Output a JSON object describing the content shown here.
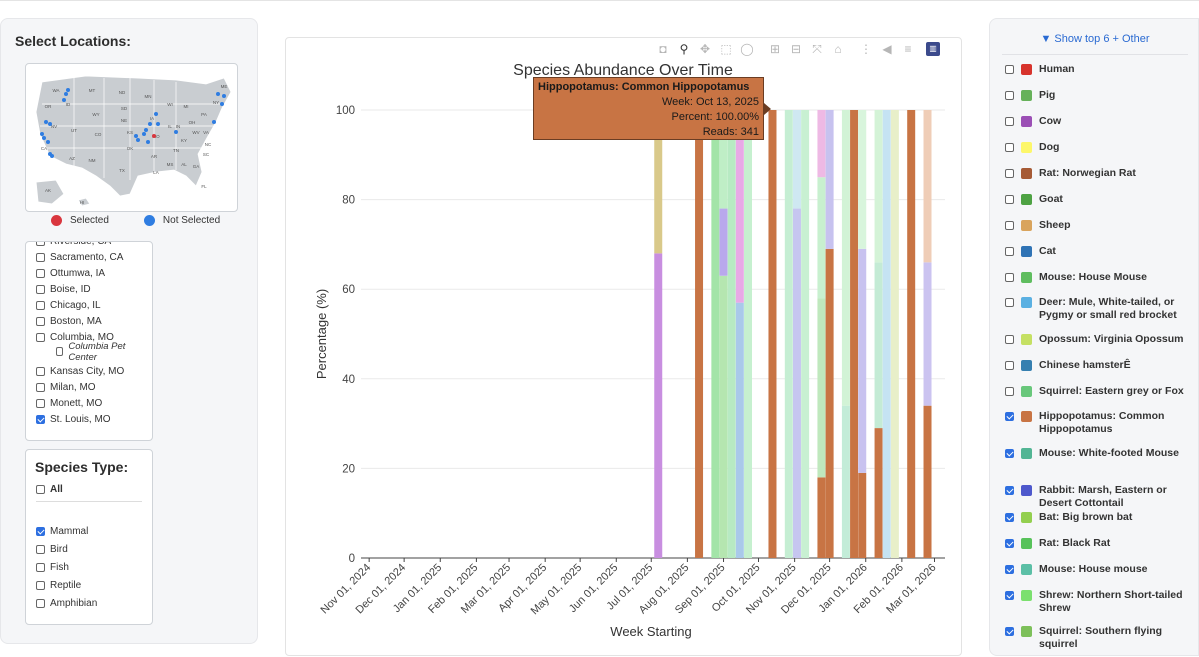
{
  "sidebar": {
    "title": "Select Locations:",
    "map_legend": {
      "selected_label": "Selected",
      "selected_color": "#d9363e",
      "not_selected_label": "Not Selected",
      "not_selected_color": "#2f7de1"
    },
    "map_state_labels": [
      "WA",
      "OR",
      "ID",
      "MT",
      "WY",
      "NV",
      "CA",
      "UT",
      "CO",
      "AZ",
      "NM",
      "ND",
      "SD",
      "NE",
      "KS",
      "OK",
      "TX",
      "MN",
      "IA",
      "MO",
      "AR",
      "LA",
      "WI",
      "IL",
      "MS",
      "AL",
      "GA",
      "FL",
      "MI",
      "IN",
      "OH",
      "KY",
      "TN",
      "SC",
      "NC",
      "VA",
      "WV",
      "PA",
      "NY",
      "ME",
      "AK",
      "HI"
    ],
    "locations": [
      {
        "label": "Riverside, CA",
        "checked": false
      },
      {
        "label": "Sacramento, CA",
        "checked": false
      },
      {
        "label": "Ottumwa, IA",
        "checked": false
      },
      {
        "label": "Boise, ID",
        "checked": false
      },
      {
        "label": "Chicago, IL",
        "checked": false
      },
      {
        "label": "Boston, MA",
        "checked": false
      },
      {
        "label": "Columbia, MO",
        "checked": false
      },
      {
        "label": "Columbia Pet Center",
        "checked": false
      },
      {
        "label": "Kansas City, MO",
        "checked": false
      },
      {
        "label": "Milan, MO",
        "checked": false
      },
      {
        "label": "Monett, MO",
        "checked": false
      },
      {
        "label": "St. Louis, MO",
        "checked": true
      }
    ],
    "species_type": {
      "title": "Species Type:",
      "all_label": "All",
      "all_checked": false,
      "options": [
        {
          "label": "Mammal",
          "checked": true
        },
        {
          "label": "Bird",
          "checked": false
        },
        {
          "label": "Fish",
          "checked": false
        },
        {
          "label": "Reptile",
          "checked": false
        },
        {
          "label": "Amphibian",
          "checked": false
        }
      ]
    }
  },
  "toolbar": {
    "icons": [
      "camera-icon",
      "zoom-icon",
      "pan-icon",
      "box-select-icon",
      "lasso-icon",
      "zoom-in-icon",
      "zoom-out-icon",
      "autoscale-icon",
      "reset-axes-icon",
      "spike-lines-icon",
      "hover-closest-icon",
      "hover-compare-icon",
      "plotly-logo-icon"
    ]
  },
  "tooltip": {
    "title": "Hippopotamus: Common Hippopotamus",
    "week": "Week: Oct 13, 2025",
    "percent": "Percent: 100.00%",
    "reads": "Reads: 341",
    "color": "#c87444"
  },
  "chart_data": {
    "type": "bar",
    "stacked": true,
    "title": "Species Abundance Over Time",
    "xlabel": "Week Starting",
    "ylabel": "Percentage (%)",
    "ylim": [
      0,
      100
    ],
    "yticks": [
      0,
      20,
      40,
      60,
      80,
      100
    ],
    "x_range": [
      "2024-10-25",
      "2026-03-10"
    ],
    "xtick_dates": [
      "2024-11-01",
      "2024-12-01",
      "2025-01-01",
      "2025-02-01",
      "2025-03-01",
      "2025-04-01",
      "2025-05-01",
      "2025-06-01",
      "2025-07-01",
      "2025-08-01",
      "2025-09-01",
      "2025-10-01",
      "2025-11-01",
      "2025-12-01",
      "2026-01-01",
      "2026-02-01",
      "2026-03-01"
    ],
    "xtick_labels": [
      "Nov 01, 2024",
      "Dec 01, 2024",
      "Jan 01, 2025",
      "Feb 01, 2025",
      "Mar 01, 2025",
      "Apr 01, 2025",
      "May 01, 2025",
      "Jun 01, 2025",
      "Jul 01, 2025",
      "Aug 01, 2025",
      "Sep 01, 2025",
      "Oct 01, 2025",
      "Nov 01, 2025",
      "Dec 01, 2025",
      "Jan 01, 2026",
      "Feb 01, 2026",
      "Mar 01, 2026"
    ],
    "bars": [
      {
        "week": "2025-07-07",
        "segments": [
          {
            "species": "Squirrel: Southern flying squirrel",
            "value": 68,
            "color": "#c88ee0"
          },
          {
            "species": "Bat: Big brown bat",
            "value": 32,
            "color": "#d9c98a"
          }
        ]
      },
      {
        "week": "2025-08-11",
        "segments": [
          {
            "species": "Hippopotamus: Common Hippopotamus",
            "value": 100,
            "color": "#c87444"
          }
        ]
      },
      {
        "week": "2025-08-25",
        "segments": [
          {
            "species": "Rat: Black Rat",
            "value": 100,
            "color": "#a3e4a8"
          }
        ]
      },
      {
        "week": "2025-09-01",
        "segments": [
          {
            "species": "Bat: Big brown bat",
            "value": 63,
            "color": "#b5e6b0"
          },
          {
            "species": "Rabbit: Marsh, Eastern or Desert Cottontail",
            "value": 15,
            "color": "#b9a8ec"
          },
          {
            "species": "Shrew: Northern Short-tailed Shrew",
            "value": 22,
            "color": "#bfeec6"
          }
        ]
      },
      {
        "week": "2025-09-08",
        "segments": [
          {
            "species": "Mouse: White-footed Mouse",
            "value": 100,
            "color": "#b7eac3"
          }
        ]
      },
      {
        "week": "2025-09-15",
        "segments": [
          {
            "species": "Mouse: House mouse",
            "value": 57,
            "color": "#a9c9ea"
          },
          {
            "species": "Squirrel: Southern flying squirrel",
            "value": 43,
            "color": "#e8a9e6"
          }
        ]
      },
      {
        "week": "2025-09-22",
        "segments": [
          {
            "species": "Rat: Black Rat",
            "value": 100,
            "color": "#c6f0cf"
          }
        ]
      },
      {
        "week": "2025-10-13",
        "segments": [
          {
            "species": "Hippopotamus: Common Hippopotamus",
            "value": 100,
            "color": "#c87444"
          }
        ]
      },
      {
        "week": "2025-10-27",
        "segments": [
          {
            "species": "Mouse: White-footed Mouse",
            "value": 100,
            "color": "#c5eed3"
          }
        ]
      },
      {
        "week": "2025-11-03",
        "segments": [
          {
            "species": "Rabbit: Marsh, Eastern or Desert Cottontail",
            "value": 78,
            "color": "#c6c6f0"
          },
          {
            "species": "Mouse: House mouse",
            "value": 22,
            "color": "#cfe8f2"
          }
        ]
      },
      {
        "week": "2025-11-10",
        "segments": [
          {
            "species": "Rat: Black Rat",
            "value": 100,
            "color": "#c8f0d2"
          }
        ]
      },
      {
        "week": "2025-11-24",
        "segments": [
          {
            "species": "Hippopotamus: Common Hippopotamus",
            "value": 18,
            "color": "#c87444"
          },
          {
            "species": "Bat: Big brown bat",
            "value": 40,
            "color": "#bfe8bd"
          },
          {
            "species": "Rat: Black Rat",
            "value": 27,
            "color": "#c8f0cf"
          },
          {
            "species": "Squirrel: Southern flying squirrel",
            "value": 15,
            "color": "#eeb9e4"
          }
        ]
      },
      {
        "week": "2025-12-01",
        "segments": [
          {
            "species": "Hippopotamus: Common Hippopotamus",
            "value": 69,
            "color": "#c87444"
          },
          {
            "species": "Rabbit: Marsh, Eastern or Desert Cottontail",
            "value": 31,
            "color": "#c7c2ef"
          }
        ]
      },
      {
        "week": "2025-12-15",
        "segments": [
          {
            "species": "Mouse: White-footed Mouse",
            "value": 34,
            "color": "#c3ecd8"
          },
          {
            "species": "Rat: Black Rat",
            "value": 66,
            "color": "#d2f3d6"
          }
        ]
      },
      {
        "week": "2025-12-22",
        "segments": [
          {
            "species": "Hippopotamus: Common Hippopotamus",
            "value": 100,
            "color": "#c87444"
          }
        ]
      },
      {
        "week": "2025-12-29",
        "segments": [
          {
            "species": "Hippopotamus: Common Hippopotamus",
            "value": 19,
            "color": "#c87444"
          },
          {
            "species": "Rabbit: Marsh, Eastern or Desert Cottontail",
            "value": 50,
            "color": "#c8c2ef"
          },
          {
            "species": "Rat: Black Rat",
            "value": 31,
            "color": "#d8f5dc"
          }
        ]
      },
      {
        "week": "2026-01-12",
        "segments": [
          {
            "species": "Hippopotamus: Common Hippopotamus",
            "value": 29,
            "color": "#c87444"
          },
          {
            "species": "Mouse: White-footed Mouse",
            "value": 37,
            "color": "#c4ebd5"
          },
          {
            "species": "Shrew: Northern Short-tailed Shrew",
            "value": 34,
            "color": "#d4f3d7"
          }
        ]
      },
      {
        "week": "2026-01-19",
        "segments": [
          {
            "species": "Mouse: House mouse",
            "value": 100,
            "color": "#c5e3f3"
          }
        ]
      },
      {
        "week": "2026-01-26",
        "segments": [
          {
            "species": "Bat: Big brown bat",
            "value": 100,
            "color": "#e8efc9"
          }
        ]
      },
      {
        "week": "2026-02-09",
        "segments": [
          {
            "species": "Hippopotamus: Common Hippopotamus",
            "value": 100,
            "color": "#c87444"
          }
        ]
      },
      {
        "week": "2026-02-23",
        "segments": [
          {
            "species": "Hippopotamus: Common Hippopotamus",
            "value": 34,
            "color": "#c87444"
          },
          {
            "species": "Rabbit: Marsh, Eastern or Desert Cottontail",
            "value": 32,
            "color": "#cbc3f0"
          },
          {
            "species": "Dog",
            "value": 34,
            "color": "#efcdb7"
          }
        ]
      }
    ]
  },
  "species_legend": {
    "show_top_label": "▼ Show top 6 + Other",
    "items": [
      {
        "label": "Human",
        "color": "#d7332c",
        "checked": false
      },
      {
        "label": "Pig",
        "color": "#66b15a",
        "checked": false
      },
      {
        "label": "Cow",
        "color": "#9b4fb5",
        "checked": false
      },
      {
        "label": "Dog",
        "color": "#fdf76a",
        "checked": false
      },
      {
        "label": "Rat: Norwegian Rat",
        "color": "#a65a35",
        "checked": false
      },
      {
        "label": "Goat",
        "color": "#4ea243",
        "checked": false
      },
      {
        "label": "Sheep",
        "color": "#d9a45d",
        "checked": false
      },
      {
        "label": "Cat",
        "color": "#2f73b5",
        "checked": false
      },
      {
        "label": "Mouse: House Mouse",
        "color": "#5fbd5f",
        "checked": false
      },
      {
        "label": "Deer: Mule, White-tailed, or Pygmy or small red brocket",
        "color": "#5ab0e2",
        "checked": false
      },
      {
        "label": "Opossum: Virginia Opossum",
        "color": "#c5e063",
        "checked": false
      },
      {
        "label": "Chinese hamsterÊ",
        "color": "#357fb0",
        "checked": false
      },
      {
        "label": "Squirrel: Eastern grey or Fox",
        "color": "#68c77b",
        "checked": false
      },
      {
        "label": "Hippopotamus: Common Hippopotamus",
        "color": "#c87444",
        "checked": true
      },
      {
        "label": "Mouse: White-footed Mouse",
        "color": "#52b594",
        "checked": true
      },
      {
        "label": "Rabbit: Marsh, Eastern or Desert Cottontail",
        "color": "#4e58cc",
        "checked": true
      },
      {
        "label": "Bat: Big brown bat",
        "color": "#93cf4f",
        "checked": true
      },
      {
        "label": "Rat: Black Rat",
        "color": "#57c25a",
        "checked": true
      },
      {
        "label": "Mouse: House mouse",
        "color": "#5bbfa6",
        "checked": true
      },
      {
        "label": "Shrew: Northern Short-tailed Shrew",
        "color": "#7be06f",
        "checked": true
      },
      {
        "label": "Squirrel: Southern flying squirrel",
        "color": "#7dc05a",
        "checked": true
      }
    ]
  }
}
